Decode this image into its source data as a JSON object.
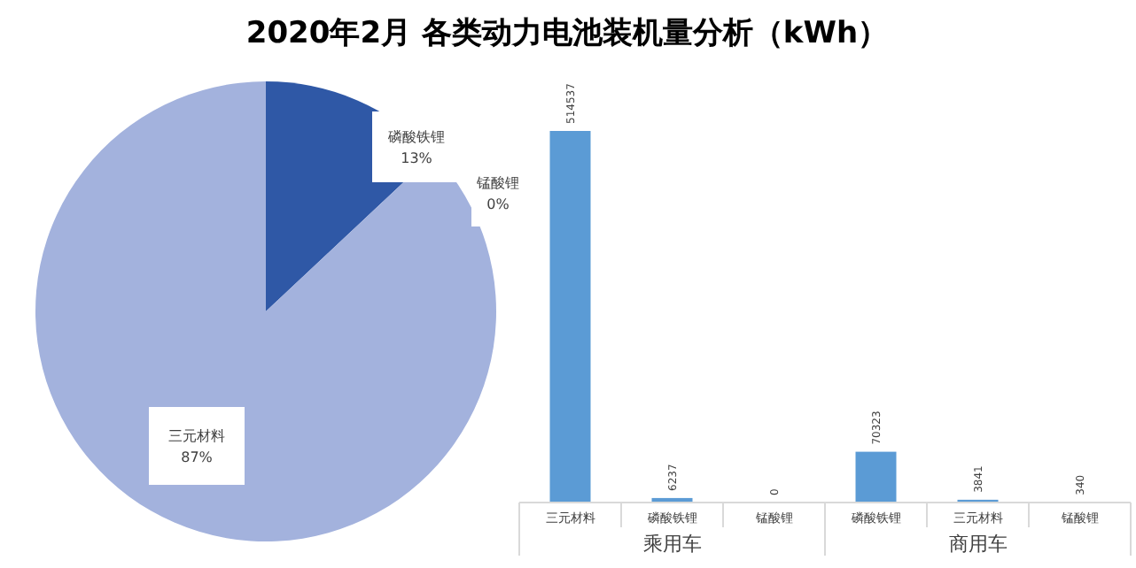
{
  "chart_data": [
    {
      "type": "pie",
      "title": "2020年2月 各类动力电池装机量分析（kWh）",
      "categories": [
        "磷酸铁锂",
        "锰酸锂",
        "三元材料"
      ],
      "values": [
        13,
        0,
        87
      ],
      "colors": [
        "#2f58a6",
        "#2f58a6",
        "#a3b2dd"
      ],
      "value_labels": [
        "13%",
        "0%",
        "87%"
      ]
    },
    {
      "type": "bar",
      "categories": [
        "三元材料",
        "磷酸铁锂",
        "锰酸锂",
        "磷酸铁锂",
        "三元材料",
        "锰酸锂"
      ],
      "values": [
        514537,
        6237,
        0,
        70323,
        3841,
        340
      ],
      "color": "#5b9bd5",
      "data_labels": true,
      "annotations": [
        "乘用车",
        "商用车"
      ]
    }
  ]
}
